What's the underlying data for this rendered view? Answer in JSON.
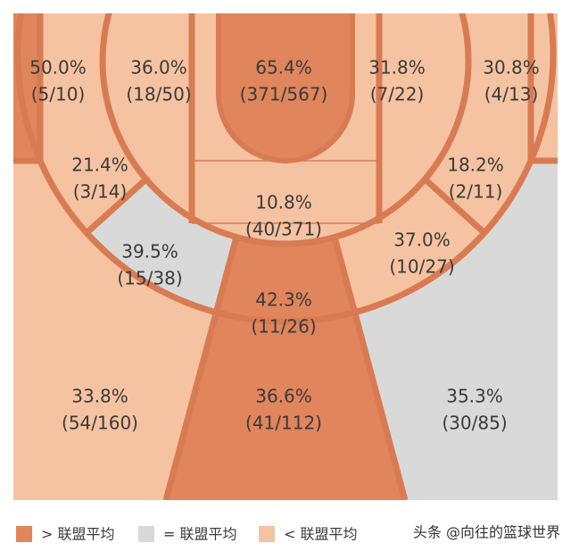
{
  "zones": [
    {
      "pct": "50.0%",
      "ratio": "(5/10)"
    },
    {
      "pct": "36.0%",
      "ratio": "(18/50)"
    },
    {
      "pct": "65.4%",
      "ratio": "(371/567)"
    },
    {
      "pct": "31.8%",
      "ratio": "(7/22)"
    },
    {
      "pct": "30.8%",
      "ratio": "(4/13)"
    },
    {
      "pct": "21.4%",
      "ratio": "(3/14)"
    },
    {
      "pct": "18.2%",
      "ratio": "(2/11)"
    },
    {
      "pct": "10.8%",
      "ratio": "(40/371)"
    },
    {
      "pct": "39.5%",
      "ratio": "(15/38)"
    },
    {
      "pct": "37.0%",
      "ratio": "(10/27)"
    },
    {
      "pct": "42.3%",
      "ratio": "(11/26)"
    },
    {
      "pct": "33.8%",
      "ratio": "(54/160)"
    },
    {
      "pct": "36.6%",
      "ratio": "(41/112)"
    },
    {
      "pct": "35.3%",
      "ratio": "(30/85)"
    }
  ],
  "legend": [
    "> 联盟平均",
    "= 联盟平均",
    "< 联盟平均"
  ],
  "watermark": "头条 @向往的篮球世界"
}
